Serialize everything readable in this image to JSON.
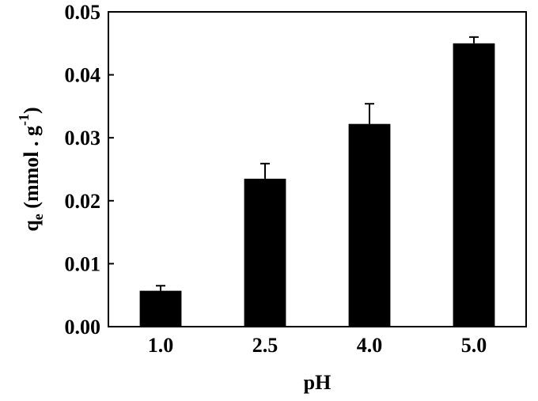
{
  "chart_data": {
    "type": "bar",
    "x_label": "pH",
    "y_label": {
      "main": "q",
      "sub": "e",
      "rest": " (mmol . g",
      "sup": "-1",
      "end": ")"
    },
    "categories": [
      "1.0",
      "2.5",
      "4.0",
      "5.0"
    ],
    "values": [
      0.0057,
      0.0235,
      0.0322,
      0.045
    ],
    "errors": [
      0.0008,
      0.0024,
      0.0032,
      0.001
    ],
    "color": "#000000",
    "ylim": [
      0,
      0.05
    ],
    "yticks": [
      {
        "value": 0,
        "label": "0.00"
      },
      0.01,
      0.02,
      0.03,
      0.04,
      0.05
    ]
  }
}
